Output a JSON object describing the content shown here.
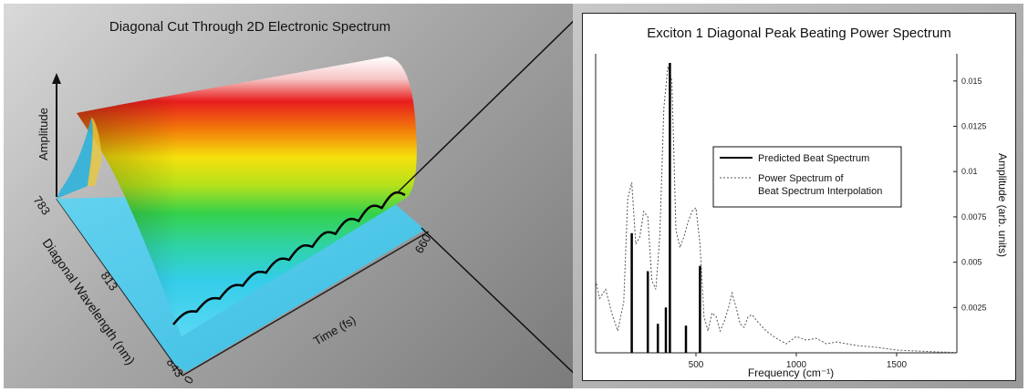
{
  "chart_data": [
    {
      "type": "surface3d",
      "title": "Diagonal Cut Through 2D Electronic Spectrum",
      "zlabel": "Amplitude",
      "ylabel": "Diagonal Wavelength (nm)",
      "xlabel": "Time (fs)",
      "y_ticks": [
        "783",
        "813",
        "843"
      ],
      "x_ticks": [
        "0",
        "660"
      ]
    },
    {
      "type": "line",
      "title": "Exciton 1 Diagonal Peak Beating Power Spectrum",
      "xlabel": "Frequency (cm⁻¹)",
      "ylabel": "Amplitude (arb. units)",
      "xlim": [
        0,
        1800
      ],
      "ylim": [
        0,
        0.0165
      ],
      "x_ticks": [
        500,
        1000,
        1500
      ],
      "y_ticks": [
        0.0025,
        0.005,
        0.0075,
        0.01,
        0.0125,
        0.015
      ],
      "y_tick_labels": [
        "0.0025",
        "0.005",
        "0.0075",
        "0.01",
        "0.0125",
        "0.015"
      ],
      "legend_position": "center-right",
      "series": [
        {
          "name": "Predicted Beat Spectrum",
          "style": "sticks",
          "color": "#000000",
          "x": [
            180,
            260,
            310,
            350,
            370,
            450,
            520
          ],
          "y": [
            0.0066,
            0.0045,
            0.0016,
            0.0025,
            0.016,
            0.0015,
            0.0048
          ]
        },
        {
          "name": "Power Spectrum of\nBeat Spectrum Interpolation",
          "style": "dashed",
          "color": "#555555",
          "x": [
            0,
            20,
            50,
            80,
            110,
            140,
            160,
            180,
            200,
            220,
            240,
            260,
            280,
            300,
            320,
            340,
            360,
            380,
            400,
            420,
            440,
            460,
            480,
            500,
            520,
            540,
            560,
            580,
            600,
            620,
            640,
            660,
            680,
            700,
            720,
            740,
            760,
            780,
            800,
            850,
            900,
            950,
            1000,
            1050,
            1100,
            1150,
            1200,
            1300,
            1400,
            1500,
            1600,
            1700,
            1800
          ],
          "y": [
            0.004,
            0.003,
            0.0035,
            0.0022,
            0.0012,
            0.0028,
            0.0085,
            0.0094,
            0.006,
            0.0064,
            0.0078,
            0.0075,
            0.004,
            0.0035,
            0.0065,
            0.0135,
            0.0158,
            0.015,
            0.0068,
            0.0058,
            0.0064,
            0.0072,
            0.0078,
            0.008,
            0.006,
            0.002,
            0.0012,
            0.0022,
            0.002,
            0.0012,
            0.0017,
            0.0024,
            0.0033,
            0.0025,
            0.0016,
            0.0014,
            0.002,
            0.0021,
            0.0018,
            0.0012,
            0.0008,
            0.0005,
            0.0009,
            0.0007,
            0.0008,
            0.0005,
            0.0006,
            0.0004,
            0.0003,
            0.00015,
            0.0001,
            5e-05,
            2e-05
          ]
        }
      ]
    }
  ]
}
